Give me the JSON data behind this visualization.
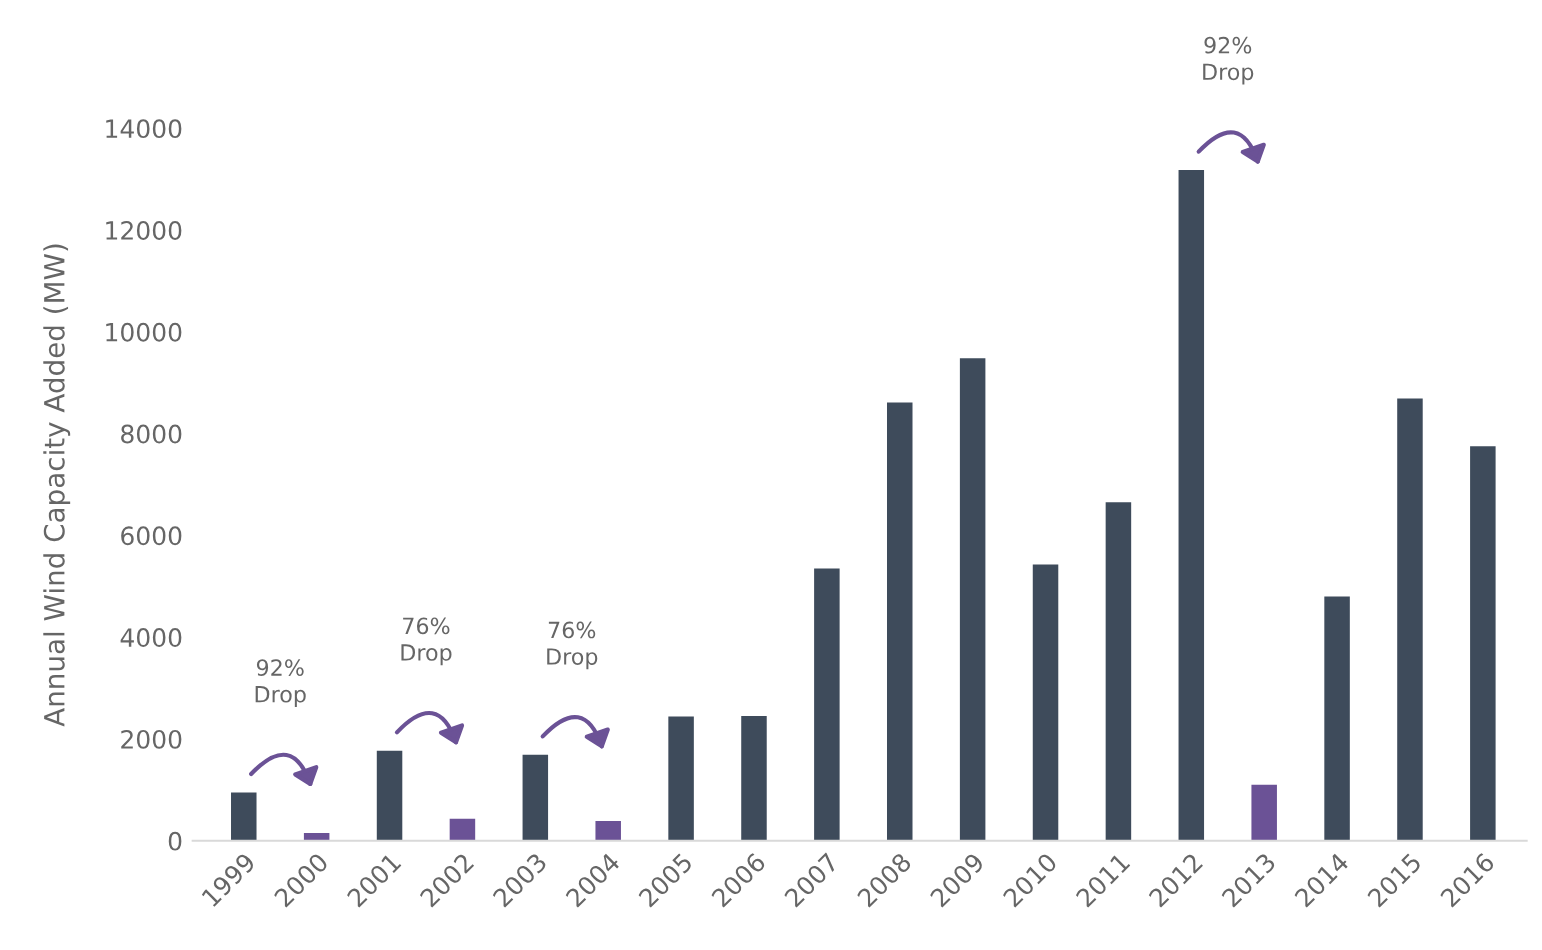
{
  "chart_data": {
    "type": "bar",
    "ylabel": "Annual Wind Capacity Added (MW)",
    "categories": [
      "1999",
      "2000",
      "2001",
      "2002",
      "2003",
      "2004",
      "2005",
      "2006",
      "2007",
      "2008",
      "2009",
      "2010",
      "2011",
      "2012",
      "2013",
      "2014",
      "2015",
      "2016"
    ],
    "values": [
      950,
      150,
      1770,
      430,
      1690,
      390,
      2440,
      2450,
      5350,
      8610,
      9480,
      5430,
      6650,
      13180,
      1100,
      4800,
      8690,
      7750
    ],
    "colors": [
      "#3e4b5b",
      "#6b5296",
      "#3e4b5b",
      "#6b5296",
      "#3e4b5b",
      "#6b5296",
      "#3e4b5b",
      "#3e4b5b",
      "#3e4b5b",
      "#3e4b5b",
      "#3e4b5b",
      "#3e4b5b",
      "#3e4b5b",
      "#3e4b5b",
      "#6b5296",
      "#3e4b5b",
      "#3e4b5b",
      "#3e4b5b"
    ],
    "ylim": [
      0,
      14000
    ],
    "yticks": [
      0,
      2000,
      4000,
      6000,
      8000,
      10000,
      12000,
      14000
    ],
    "grid": false,
    "annotations": [
      "92%\nDrop",
      "76%\nDrop",
      "76%\nDrop",
      "92%\nDrop"
    ]
  }
}
